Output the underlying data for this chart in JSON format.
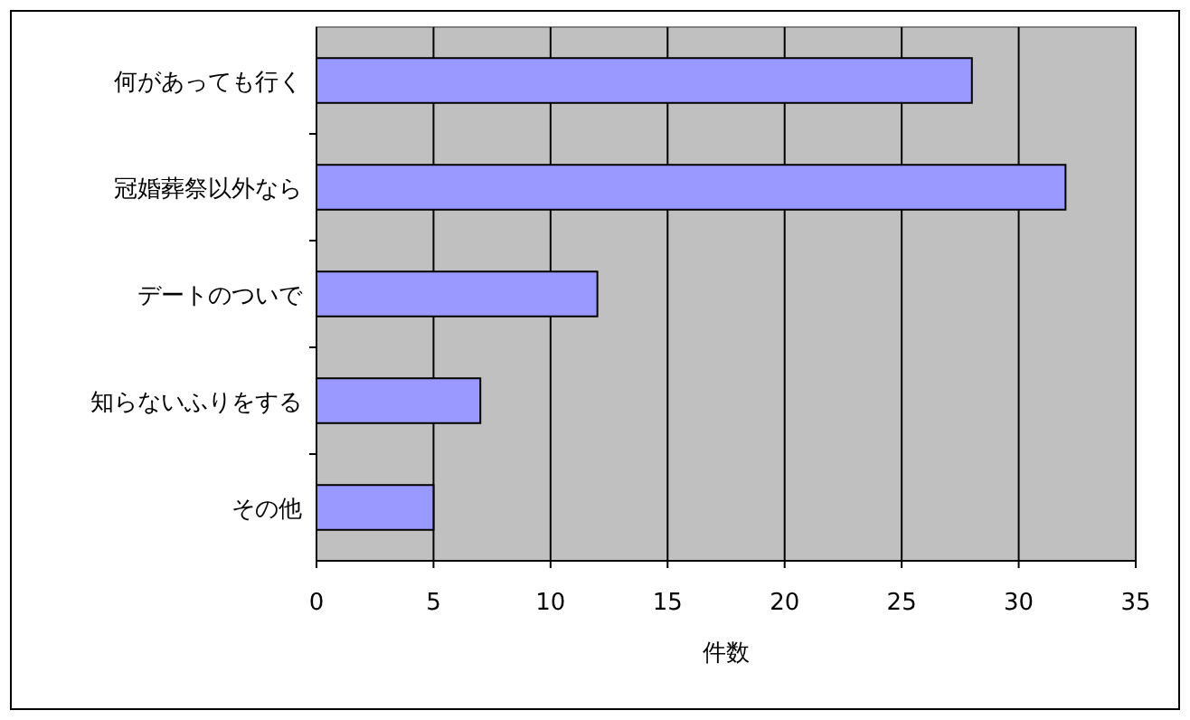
{
  "chart_data": {
    "type": "bar",
    "orientation": "horizontal",
    "xlabel": "件数",
    "categories": [
      "何があっても行く",
      "冠婚葬祭以外なら",
      "デートのついで",
      "知らないふりをする",
      "その他"
    ],
    "values": [
      28,
      32,
      12,
      7,
      5
    ],
    "color": "#9999ff",
    "xlim": [
      0,
      35
    ],
    "xticks": [
      0,
      5,
      10,
      15,
      20,
      25,
      30,
      35
    ],
    "grid": "x"
  }
}
